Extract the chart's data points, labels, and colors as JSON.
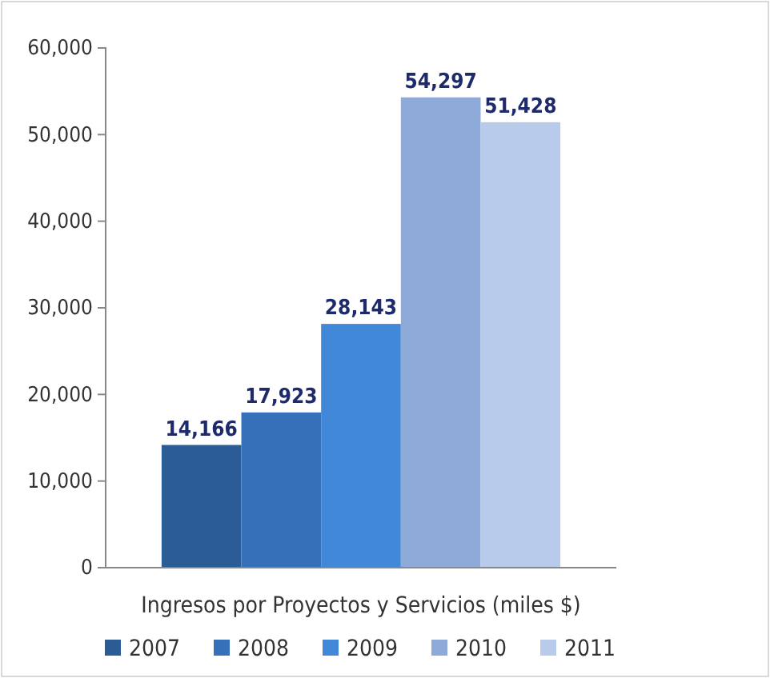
{
  "chart_data": {
    "type": "bar",
    "categories": [
      "Ingresos por Proyectos y Servicios (miles $)"
    ],
    "series": [
      {
        "name": "2007",
        "color": "#2b5c96",
        "values": [
          14166
        ],
        "value_labels": [
          "14,166"
        ]
      },
      {
        "name": "2008",
        "color": "#3670b8",
        "values": [
          17923
        ],
        "value_labels": [
          "17,923"
        ]
      },
      {
        "name": "2009",
        "color": "#4288d8",
        "values": [
          28143
        ],
        "value_labels": [
          "28,143"
        ]
      },
      {
        "name": "2010",
        "color": "#8eaad8",
        "values": [
          54297
        ],
        "value_labels": [
          "54,297"
        ]
      },
      {
        "name": "2011",
        "color": "#b8cbea",
        "values": [
          51428
        ],
        "value_labels": [
          "51,428"
        ]
      }
    ],
    "ylim": [
      0,
      60000
    ],
    "yticks": [
      0,
      {
        "value": 10000,
        "label": "10,000"
      },
      {
        "value": 20000,
        "label": "20,000"
      },
      {
        "value": 30000,
        "label": "30,000"
      },
      {
        "value": 40000,
        "label": "40,000"
      },
      {
        "value": 50000,
        "label": "50,000"
      },
      {
        "value": 60000,
        "label": "60,000"
      }
    ],
    "legend": "bottom",
    "grid": false
  }
}
